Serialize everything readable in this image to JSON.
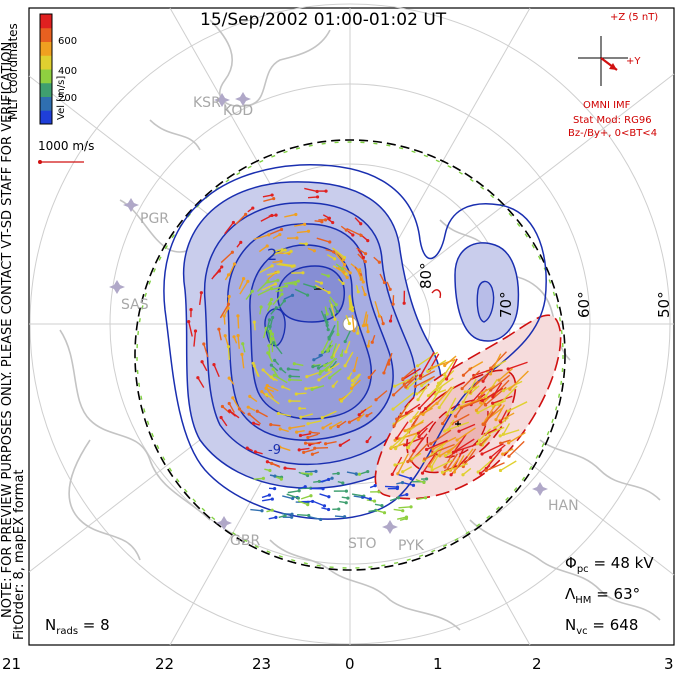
{
  "title": "15/Sep/2002 01:00-01:02 UT",
  "colorbar": {
    "ticks": [
      "600",
      "400",
      "200"
    ],
    "axis_label": "Vel [m/s]",
    "colors": [
      "#1f3fd8",
      "#2f6fb0",
      "#3f9f6f",
      "#8fd040",
      "#e0d030",
      "#f0a020",
      "#e86020",
      "#e02020"
    ]
  },
  "coords_label": "MLT coordinates",
  "note_text": "NOTE: FOR PREVIEW PURPOSES ONLY. PLEASE CONTACT VT-SD STAFF FOR VERIFICATION.",
  "fit_text": "FitOrder: 8,  mapEX format",
  "vector_key": "1000 m/s",
  "imf": {
    "z_label": "+Z (5 nT)",
    "y_label": "+Y",
    "source": "OMNI IMF",
    "model": "Stat Mod: RG96",
    "condition": "Bz-/By+, 0<BT<4"
  },
  "lat_labels": [
    "80°",
    "70°",
    "60°",
    "50°"
  ],
  "stations": [
    "KSR",
    "KOD",
    "PGR",
    "SAS",
    "GBR",
    "STO",
    "PYK",
    "HAN"
  ],
  "stats": {
    "phi_pc_label": "Φ",
    "phi_pc_sub": "pc",
    "phi_pc_value": " = 48 kV",
    "lambda_label": "Λ",
    "lambda_sub": "HM",
    "lambda_value": " = 63°",
    "nvc_label": "N",
    "nvc_sub": "vc",
    "nvc_value": " = 648",
    "nrads_label": "N",
    "nrads_sub": "rads",
    "nrads_value": " = 8"
  },
  "mlt_ticks": [
    "21",
    "22",
    "23",
    "0",
    "1",
    "2",
    "3"
  ],
  "contour_labels": [
    "2",
    "-9"
  ],
  "colors": {
    "positive": "#1a2fb0",
    "negative": "#d01010",
    "pos_fill": "#c8cdee",
    "neg_fill": "#f4d8d8",
    "boundary": "#000000",
    "hmb": "#7fd040"
  }
}
